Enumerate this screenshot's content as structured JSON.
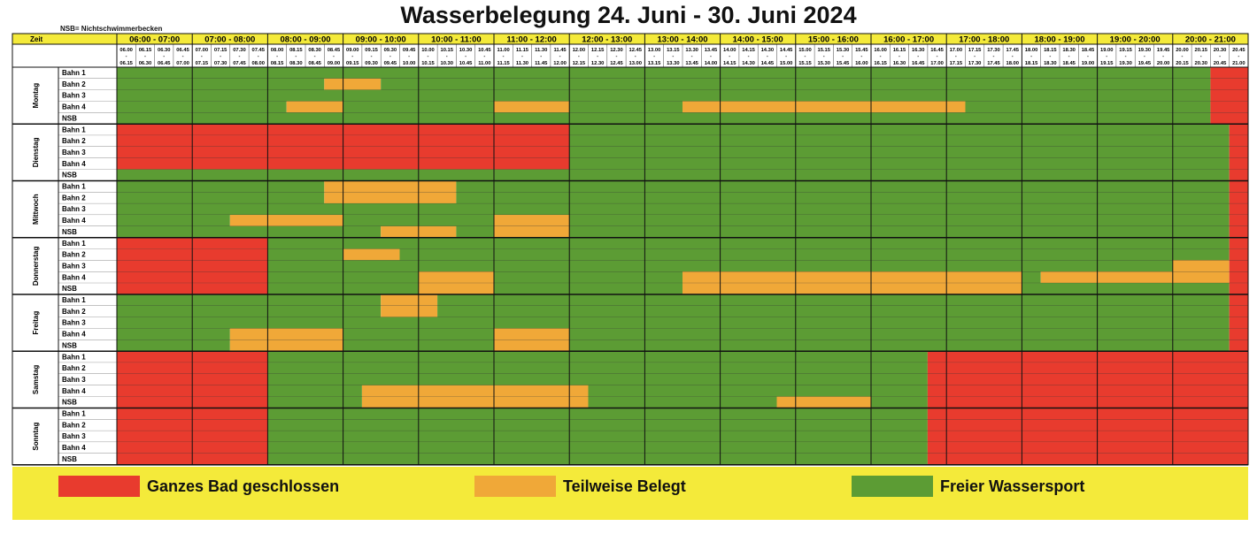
{
  "title": "Wasserbelegung 24. Juni - 30. Juni 2024",
  "note": "NSB= Nichtschwimmerbecken",
  "zeit_label": "Zeit",
  "colors": {
    "closed": "#e83b2e",
    "partial": "#f0a838",
    "free": "#5c9c34",
    "yellow": "#f4ea3a"
  },
  "hours": [
    "06:00 - 07:00",
    "07:00 - 08:00",
    "08:00 - 09:00",
    "09:00 - 10:00",
    "10:00 - 11:00",
    "11:00 - 12:00",
    "12:00 - 13:00",
    "13:00 - 14:00",
    "14:00 - 15:00",
    "15:00 - 16:00",
    "16:00 - 17:00",
    "17:00 - 18:00",
    "18:00 - 19:00",
    "19:00 - 20:00",
    "20:00 - 21:00"
  ],
  "slot_starts": [
    "06.00",
    "06.15",
    "06.30",
    "06.45",
    "07.00",
    "07.15",
    "07.30",
    "07.45",
    "08.00",
    "08.15",
    "08.30",
    "08.45",
    "09.00",
    "09.15",
    "09.30",
    "09.45",
    "10.00",
    "10.15",
    "10.30",
    "10.45",
    "11.00",
    "11.15",
    "11.30",
    "11.45",
    "12.00",
    "12.15",
    "12.30",
    "12.45",
    "13.00",
    "13.15",
    "13.30",
    "13.45",
    "14.00",
    "14.15",
    "14.30",
    "14.45",
    "15.00",
    "15.15",
    "15.30",
    "15.45",
    "16.00",
    "16.15",
    "16.30",
    "16.45",
    "17.00",
    "17.15",
    "17.30",
    "17.45",
    "18.00",
    "18.15",
    "18.30",
    "18.45",
    "19.00",
    "19.15",
    "19.30",
    "19.45",
    "20.00",
    "20.15",
    "20.30",
    "20.45"
  ],
  "slot_ends": [
    "06.15",
    "06.30",
    "06.45",
    "07.00",
    "07.15",
    "07.30",
    "07.45",
    "08.00",
    "08.15",
    "08.30",
    "08.45",
    "09.00",
    "09.15",
    "09.30",
    "09.45",
    "10.00",
    "10.15",
    "10.30",
    "10.45",
    "11.00",
    "11.15",
    "11.30",
    "11.45",
    "12.00",
    "12.15",
    "12.30",
    "12.45",
    "13.00",
    "13.15",
    "13.30",
    "13.45",
    "14.00",
    "14.15",
    "14.30",
    "14.45",
    "15.00",
    "15.15",
    "15.30",
    "15.45",
    "16.00",
    "16.15",
    "16.30",
    "16.45",
    "17.00",
    "17.15",
    "17.30",
    "17.45",
    "18.00",
    "18.15",
    "18.30",
    "18.45",
    "19.00",
    "19.15",
    "19.30",
    "19.45",
    "20.00",
    "20.15",
    "20.30",
    "20.45",
    "21.00"
  ],
  "lanes": [
    "Bahn 1",
    "Bahn 2",
    "Bahn 3",
    "Bahn 4",
    "NSB"
  ],
  "days": [
    {
      "name": "Montag",
      "lanes": [
        [
          {
            "s": 0,
            "e": 58,
            "c": "free"
          },
          {
            "s": 58,
            "e": 60,
            "c": "closed"
          }
        ],
        [
          {
            "s": 0,
            "e": 11,
            "c": "free"
          },
          {
            "s": 11,
            "e": 14,
            "c": "partial"
          },
          {
            "s": 14,
            "e": 58,
            "c": "free"
          },
          {
            "s": 58,
            "e": 60,
            "c": "closed"
          }
        ],
        [
          {
            "s": 0,
            "e": 58,
            "c": "free"
          },
          {
            "s": 58,
            "e": 60,
            "c": "closed"
          }
        ],
        [
          {
            "s": 0,
            "e": 9,
            "c": "free"
          },
          {
            "s": 9,
            "e": 12,
            "c": "partial"
          },
          {
            "s": 12,
            "e": 20,
            "c": "free"
          },
          {
            "s": 20,
            "e": 24,
            "c": "partial"
          },
          {
            "s": 24,
            "e": 30,
            "c": "free"
          },
          {
            "s": 30,
            "e": 45,
            "c": "partial"
          },
          {
            "s": 45,
            "e": 58,
            "c": "free"
          },
          {
            "s": 58,
            "e": 60,
            "c": "closed"
          }
        ],
        [
          {
            "s": 0,
            "e": 58,
            "c": "free"
          },
          {
            "s": 58,
            "e": 60,
            "c": "closed"
          }
        ]
      ]
    },
    {
      "name": "Dienstag",
      "lanes": [
        [
          {
            "s": 0,
            "e": 24,
            "c": "closed"
          },
          {
            "s": 24,
            "e": 59,
            "c": "free"
          },
          {
            "s": 59,
            "e": 60,
            "c": "closed"
          }
        ],
        [
          {
            "s": 0,
            "e": 24,
            "c": "closed"
          },
          {
            "s": 24,
            "e": 59,
            "c": "free"
          },
          {
            "s": 59,
            "e": 60,
            "c": "closed"
          }
        ],
        [
          {
            "s": 0,
            "e": 24,
            "c": "closed"
          },
          {
            "s": 24,
            "e": 59,
            "c": "free"
          },
          {
            "s": 59,
            "e": 60,
            "c": "closed"
          }
        ],
        [
          {
            "s": 0,
            "e": 24,
            "c": "closed"
          },
          {
            "s": 24,
            "e": 59,
            "c": "free"
          },
          {
            "s": 59,
            "e": 60,
            "c": "closed"
          }
        ],
        [
          {
            "s": 0,
            "e": 59,
            "c": "free"
          },
          {
            "s": 59,
            "e": 60,
            "c": "closed"
          }
        ]
      ]
    },
    {
      "name": "Mittwoch",
      "lanes": [
        [
          {
            "s": 0,
            "e": 11,
            "c": "free"
          },
          {
            "s": 11,
            "e": 18,
            "c": "partial"
          },
          {
            "s": 18,
            "e": 59,
            "c": "free"
          },
          {
            "s": 59,
            "e": 60,
            "c": "closed"
          }
        ],
        [
          {
            "s": 0,
            "e": 11,
            "c": "free"
          },
          {
            "s": 11,
            "e": 18,
            "c": "partial"
          },
          {
            "s": 18,
            "e": 59,
            "c": "free"
          },
          {
            "s": 59,
            "e": 60,
            "c": "closed"
          }
        ],
        [
          {
            "s": 0,
            "e": 59,
            "c": "free"
          },
          {
            "s": 59,
            "e": 60,
            "c": "closed"
          }
        ],
        [
          {
            "s": 0,
            "e": 6,
            "c": "free"
          },
          {
            "s": 6,
            "e": 12,
            "c": "partial"
          },
          {
            "s": 12,
            "e": 20,
            "c": "free"
          },
          {
            "s": 20,
            "e": 24,
            "c": "partial"
          },
          {
            "s": 24,
            "e": 59,
            "c": "free"
          },
          {
            "s": 59,
            "e": 60,
            "c": "closed"
          }
        ],
        [
          {
            "s": 0,
            "e": 14,
            "c": "free"
          },
          {
            "s": 14,
            "e": 18,
            "c": "partial"
          },
          {
            "s": 18,
            "e": 20,
            "c": "free"
          },
          {
            "s": 20,
            "e": 24,
            "c": "partial"
          },
          {
            "s": 24,
            "e": 59,
            "c": "free"
          },
          {
            "s": 59,
            "e": 60,
            "c": "closed"
          }
        ]
      ]
    },
    {
      "name": "Donnerstag",
      "lanes": [
        [
          {
            "s": 0,
            "e": 8,
            "c": "closed"
          },
          {
            "s": 8,
            "e": 59,
            "c": "free"
          },
          {
            "s": 59,
            "e": 60,
            "c": "closed"
          }
        ],
        [
          {
            "s": 0,
            "e": 8,
            "c": "closed"
          },
          {
            "s": 8,
            "e": 12,
            "c": "free"
          },
          {
            "s": 12,
            "e": 15,
            "c": "partial"
          },
          {
            "s": 15,
            "e": 59,
            "c": "free"
          },
          {
            "s": 59,
            "e": 60,
            "c": "closed"
          }
        ],
        [
          {
            "s": 0,
            "e": 8,
            "c": "closed"
          },
          {
            "s": 8,
            "e": 56,
            "c": "free"
          },
          {
            "s": 56,
            "e": 59,
            "c": "partial"
          },
          {
            "s": 59,
            "e": 60,
            "c": "closed"
          }
        ],
        [
          {
            "s": 0,
            "e": 8,
            "c": "closed"
          },
          {
            "s": 8,
            "e": 16,
            "c": "free"
          },
          {
            "s": 16,
            "e": 20,
            "c": "partial"
          },
          {
            "s": 20,
            "e": 30,
            "c": "free"
          },
          {
            "s": 30,
            "e": 48,
            "c": "partial"
          },
          {
            "s": 48,
            "e": 49,
            "c": "free"
          },
          {
            "s": 49,
            "e": 59,
            "c": "partial"
          },
          {
            "s": 59,
            "e": 60,
            "c": "closed"
          }
        ],
        [
          {
            "s": 0,
            "e": 8,
            "c": "closed"
          },
          {
            "s": 8,
            "e": 16,
            "c": "free"
          },
          {
            "s": 16,
            "e": 20,
            "c": "partial"
          },
          {
            "s": 20,
            "e": 30,
            "c": "free"
          },
          {
            "s": 30,
            "e": 48,
            "c": "partial"
          },
          {
            "s": 48,
            "e": 59,
            "c": "free"
          },
          {
            "s": 59,
            "e": 60,
            "c": "closed"
          }
        ]
      ]
    },
    {
      "name": "Freitag",
      "lanes": [
        [
          {
            "s": 0,
            "e": 14,
            "c": "free"
          },
          {
            "s": 14,
            "e": 17,
            "c": "partial"
          },
          {
            "s": 17,
            "e": 59,
            "c": "free"
          },
          {
            "s": 59,
            "e": 60,
            "c": "closed"
          }
        ],
        [
          {
            "s": 0,
            "e": 14,
            "c": "free"
          },
          {
            "s": 14,
            "e": 17,
            "c": "partial"
          },
          {
            "s": 17,
            "e": 59,
            "c": "free"
          },
          {
            "s": 59,
            "e": 60,
            "c": "closed"
          }
        ],
        [
          {
            "s": 0,
            "e": 59,
            "c": "free"
          },
          {
            "s": 59,
            "e": 60,
            "c": "closed"
          }
        ],
        [
          {
            "s": 0,
            "e": 6,
            "c": "free"
          },
          {
            "s": 6,
            "e": 12,
            "c": "partial"
          },
          {
            "s": 12,
            "e": 20,
            "c": "free"
          },
          {
            "s": 20,
            "e": 24,
            "c": "partial"
          },
          {
            "s": 24,
            "e": 59,
            "c": "free"
          },
          {
            "s": 59,
            "e": 60,
            "c": "closed"
          }
        ],
        [
          {
            "s": 0,
            "e": 6,
            "c": "free"
          },
          {
            "s": 6,
            "e": 12,
            "c": "partial"
          },
          {
            "s": 12,
            "e": 20,
            "c": "free"
          },
          {
            "s": 20,
            "e": 24,
            "c": "partial"
          },
          {
            "s": 24,
            "e": 59,
            "c": "free"
          },
          {
            "s": 59,
            "e": 60,
            "c": "closed"
          }
        ]
      ]
    },
    {
      "name": "Samstag",
      "lanes": [
        [
          {
            "s": 0,
            "e": 8,
            "c": "closed"
          },
          {
            "s": 8,
            "e": 43,
            "c": "free"
          },
          {
            "s": 43,
            "e": 60,
            "c": "closed"
          }
        ],
        [
          {
            "s": 0,
            "e": 8,
            "c": "closed"
          },
          {
            "s": 8,
            "e": 43,
            "c": "free"
          },
          {
            "s": 43,
            "e": 60,
            "c": "closed"
          }
        ],
        [
          {
            "s": 0,
            "e": 8,
            "c": "closed"
          },
          {
            "s": 8,
            "e": 43,
            "c": "free"
          },
          {
            "s": 43,
            "e": 60,
            "c": "closed"
          }
        ],
        [
          {
            "s": 0,
            "e": 8,
            "c": "closed"
          },
          {
            "s": 8,
            "e": 13,
            "c": "free"
          },
          {
            "s": 13,
            "e": 25,
            "c": "partial"
          },
          {
            "s": 25,
            "e": 43,
            "c": "free"
          },
          {
            "s": 43,
            "e": 60,
            "c": "closed"
          }
        ],
        [
          {
            "s": 0,
            "e": 8,
            "c": "closed"
          },
          {
            "s": 8,
            "e": 13,
            "c": "free"
          },
          {
            "s": 13,
            "e": 25,
            "c": "partial"
          },
          {
            "s": 25,
            "e": 35,
            "c": "free"
          },
          {
            "s": 35,
            "e": 40,
            "c": "partial"
          },
          {
            "s": 40,
            "e": 43,
            "c": "free"
          },
          {
            "s": 43,
            "e": 60,
            "c": "closed"
          }
        ]
      ]
    },
    {
      "name": "Sonntag",
      "lanes": [
        [
          {
            "s": 0,
            "e": 8,
            "c": "closed"
          },
          {
            "s": 8,
            "e": 43,
            "c": "free"
          },
          {
            "s": 43,
            "e": 60,
            "c": "closed"
          }
        ],
        [
          {
            "s": 0,
            "e": 8,
            "c": "closed"
          },
          {
            "s": 8,
            "e": 43,
            "c": "free"
          },
          {
            "s": 43,
            "e": 60,
            "c": "closed"
          }
        ],
        [
          {
            "s": 0,
            "e": 8,
            "c": "closed"
          },
          {
            "s": 8,
            "e": 43,
            "c": "free"
          },
          {
            "s": 43,
            "e": 60,
            "c": "closed"
          }
        ],
        [
          {
            "s": 0,
            "e": 8,
            "c": "closed"
          },
          {
            "s": 8,
            "e": 43,
            "c": "free"
          },
          {
            "s": 43,
            "e": 60,
            "c": "closed"
          }
        ],
        [
          {
            "s": 0,
            "e": 8,
            "c": "closed"
          },
          {
            "s": 8,
            "e": 43,
            "c": "free"
          },
          {
            "s": 43,
            "e": 60,
            "c": "closed"
          }
        ]
      ]
    }
  ],
  "legend": [
    {
      "key": "closed",
      "label": "Ganzes Bad geschlossen"
    },
    {
      "key": "partial",
      "label": "Teilweise Belegt"
    },
    {
      "key": "free",
      "label": "Freier Wassersport"
    }
  ]
}
